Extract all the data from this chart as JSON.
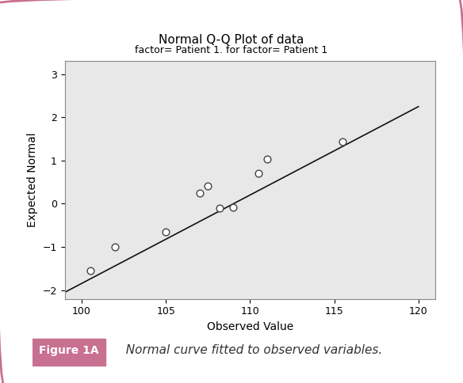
{
  "title": "Normal Q-Q Plot of data",
  "subtitle": "factor= Patient 1. for factor= Patient 1",
  "xlabel": "Observed Value",
  "ylabel": "Expected Normal",
  "xlim": [
    99,
    121
  ],
  "ylim": [
    -2.2,
    3.3
  ],
  "xticks": [
    100,
    105,
    110,
    115,
    120
  ],
  "yticks": [
    -2,
    -1,
    0,
    1,
    2,
    3
  ],
  "scatter_x": [
    100.5,
    102.0,
    105.0,
    107.0,
    107.5,
    108.2,
    109.0,
    110.5,
    111.0,
    115.5
  ],
  "scatter_y": [
    -1.55,
    -1.0,
    -0.65,
    0.25,
    0.42,
    -0.1,
    -0.08,
    0.7,
    1.03,
    1.44
  ],
  "line_x": [
    99,
    120
  ],
  "line_y": [
    -2.05,
    2.25
  ],
  "scatter_color": "white",
  "scatter_edgecolor": "#444444",
  "line_color": "#111111",
  "bg_color": "#e8e8e8",
  "fig_bg": "#ffffff",
  "title_fontsize": 11,
  "subtitle_fontsize": 9,
  "label_fontsize": 10,
  "tick_fontsize": 9,
  "caption_label": "Figure 1A",
  "caption_text": "  Normal curve fitted to observed variables.",
  "caption_label_bg": "#c87090",
  "outer_border_color": "#c87090"
}
